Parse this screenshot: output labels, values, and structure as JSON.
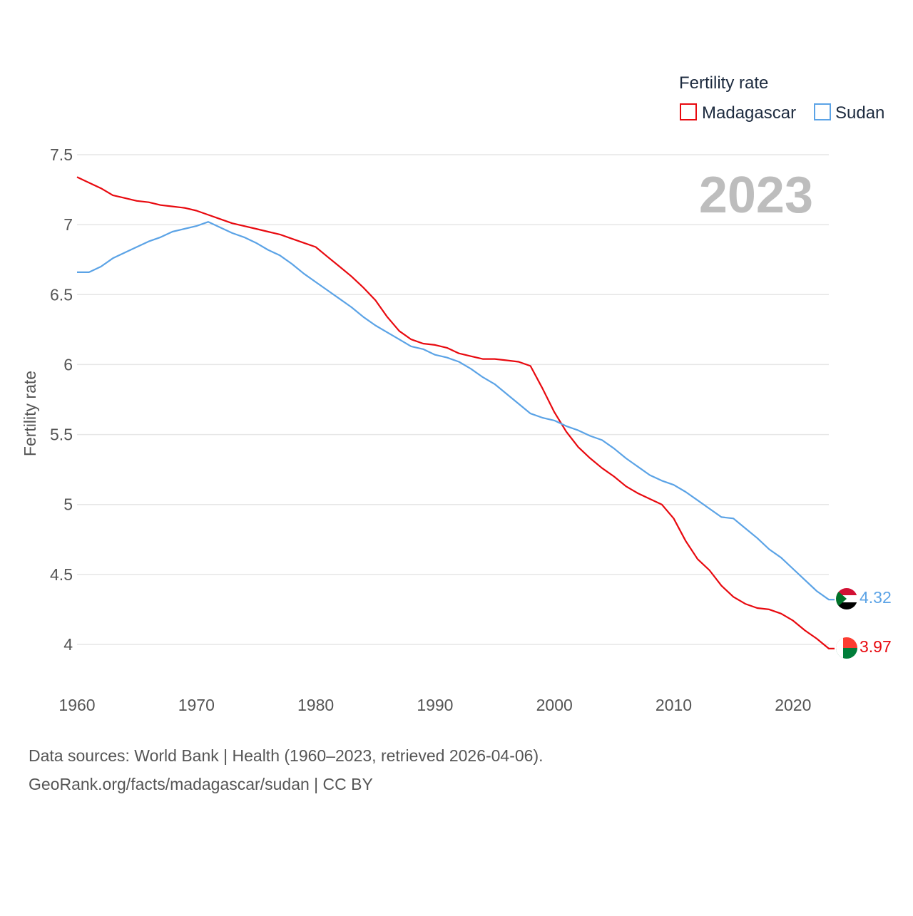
{
  "chart_data": {
    "type": "line",
    "ylabel": "Fertility rate",
    "xlabel": "",
    "xlim": [
      1960,
      2023
    ],
    "ylim": [
      3.8,
      7.55
    ],
    "y_ticks": [
      4,
      4.5,
      5,
      5.5,
      6,
      6.5,
      7,
      7.5
    ],
    "y_tick_labels": [
      "4",
      "4.5",
      "5",
      "5.5",
      "6",
      "6.5",
      "7",
      "7.5"
    ],
    "x_ticks": [
      1960,
      1970,
      1980,
      1990,
      2000,
      2010,
      2020
    ],
    "x_tick_labels": [
      "1960",
      "1970",
      "1980",
      "1990",
      "2000",
      "2010",
      "2020"
    ],
    "grid": true,
    "legend_title": "Fertility rate",
    "legend_position": "top-right",
    "year_label": "2023",
    "x": [
      1960,
      1961,
      1962,
      1963,
      1964,
      1965,
      1966,
      1967,
      1968,
      1969,
      1970,
      1971,
      1972,
      1973,
      1974,
      1975,
      1976,
      1977,
      1978,
      1979,
      1980,
      1981,
      1982,
      1983,
      1984,
      1985,
      1986,
      1987,
      1988,
      1989,
      1990,
      1991,
      1992,
      1993,
      1994,
      1995,
      1996,
      1997,
      1998,
      1999,
      2000,
      2001,
      2002,
      2003,
      2004,
      2005,
      2006,
      2007,
      2008,
      2009,
      2010,
      2011,
      2012,
      2013,
      2014,
      2015,
      2016,
      2017,
      2018,
      2019,
      2020,
      2021,
      2022,
      2023
    ],
    "series": [
      {
        "name": "Madagascar",
        "color": "#e8090f",
        "end_label": "3.97",
        "flag": "madagascar-flag",
        "values": [
          7.34,
          7.3,
          7.26,
          7.21,
          7.19,
          7.17,
          7.16,
          7.14,
          7.13,
          7.12,
          7.1,
          7.07,
          7.04,
          7.01,
          6.99,
          6.97,
          6.95,
          6.93,
          6.9,
          6.87,
          6.84,
          6.77,
          6.7,
          6.63,
          6.55,
          6.46,
          6.34,
          6.24,
          6.18,
          6.15,
          6.14,
          6.12,
          6.08,
          6.06,
          6.04,
          6.04,
          6.03,
          6.02,
          5.99,
          5.83,
          5.66,
          5.52,
          5.41,
          5.33,
          5.26,
          5.2,
          5.13,
          5.08,
          5.04,
          5.0,
          4.9,
          4.74,
          4.61,
          4.53,
          4.42,
          4.34,
          4.29,
          4.26,
          4.25,
          4.22,
          4.17,
          4.1,
          4.04,
          3.97
        ]
      },
      {
        "name": "Sudan",
        "color": "#5ba3e6",
        "end_label": "4.32",
        "flag": "sudan-flag",
        "values": [
          6.66,
          6.66,
          6.7,
          6.76,
          6.8,
          6.84,
          6.88,
          6.91,
          6.95,
          6.97,
          6.99,
          7.02,
          6.98,
          6.94,
          6.91,
          6.87,
          6.82,
          6.78,
          6.72,
          6.65,
          6.59,
          6.53,
          6.47,
          6.41,
          6.34,
          6.28,
          6.23,
          6.18,
          6.13,
          6.11,
          6.07,
          6.05,
          6.02,
          5.97,
          5.91,
          5.86,
          5.79,
          5.72,
          5.65,
          5.62,
          5.6,
          5.56,
          5.53,
          5.49,
          5.46,
          5.4,
          5.33,
          5.27,
          5.21,
          5.17,
          5.14,
          5.09,
          5.03,
          4.97,
          4.91,
          4.9,
          4.83,
          4.76,
          4.68,
          4.62,
          4.54,
          4.46,
          4.38,
          4.32
        ]
      }
    ]
  },
  "source": {
    "line1": "Data sources: World Bank | Health (1960–2023, retrieved 2026-04-06).",
    "line2": "GeoRank.org/facts/madagascar/sudan | CC BY"
  }
}
